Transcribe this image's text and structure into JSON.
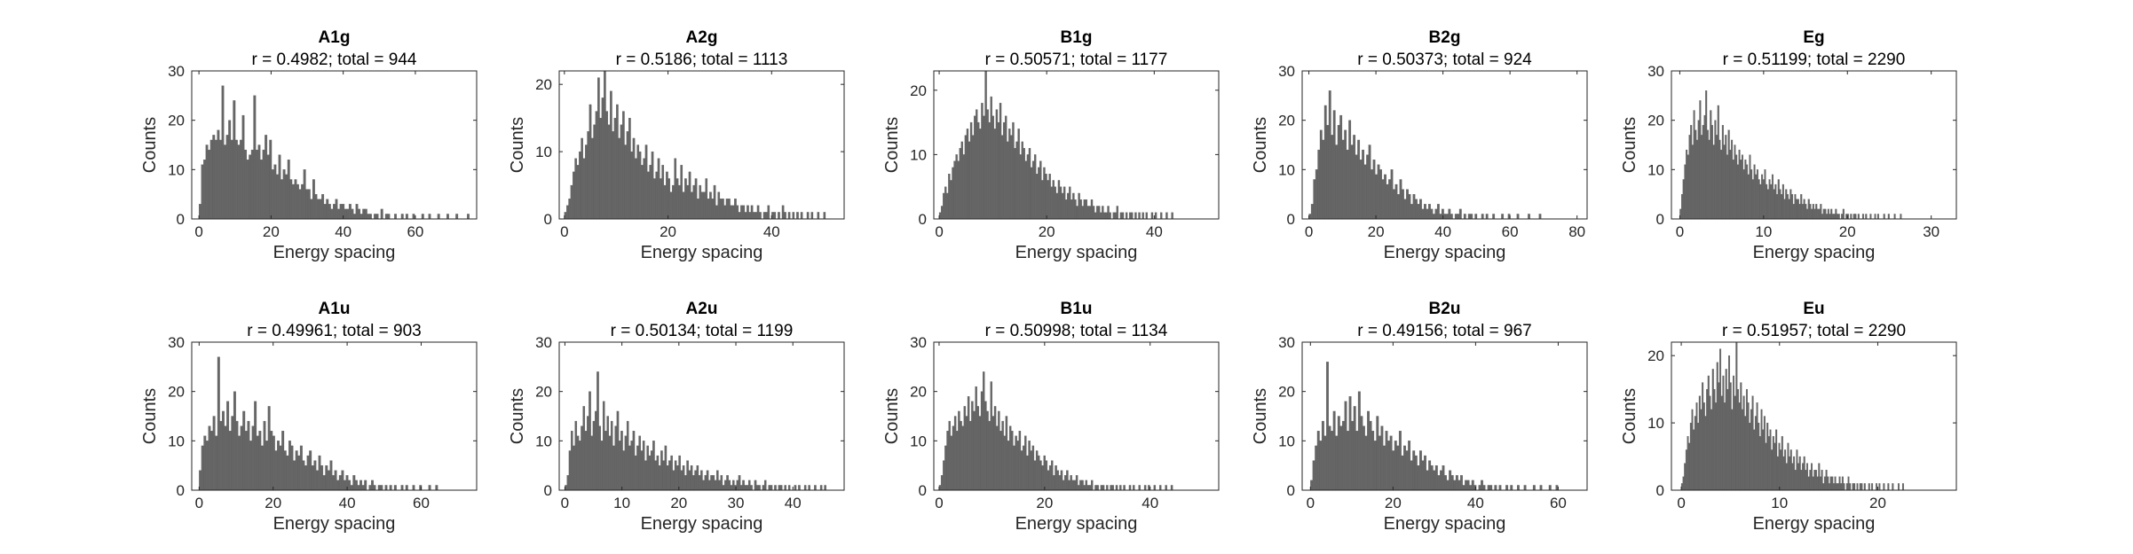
{
  "chart_data": [
    {
      "type": "bar",
      "title": "A1g",
      "subtitle": "r = 0.4982; total = 944",
      "xlabel": "Energy spacing",
      "ylabel": "Counts",
      "xlim": [
        -2,
        77
      ],
      "ylim": [
        0,
        30
      ],
      "xticks": [
        "0",
        "20",
        "40",
        "60"
      ],
      "yticks": [
        "0",
        "10",
        "20",
        "30"
      ],
      "bin_width": 0.63,
      "color": "#666666",
      "values": [
        3,
        11,
        12,
        15,
        14,
        16,
        17,
        16,
        18,
        16,
        27,
        15,
        17,
        20,
        16,
        24,
        16,
        15,
        16,
        21,
        14,
        12,
        13,
        14,
        25,
        14,
        15,
        12,
        14,
        17,
        13,
        16,
        10,
        11,
        9,
        13,
        8,
        10,
        9,
        12,
        8,
        7,
        8,
        7,
        6,
        7,
        10,
        6,
        6,
        4,
        8,
        5,
        4,
        4,
        5,
        3,
        4,
        3,
        2,
        3,
        4,
        2,
        3,
        3,
        2,
        2,
        3,
        2,
        1,
        3,
        2,
        1,
        2,
        2,
        1,
        1,
        0,
        1,
        1,
        0,
        2,
        0,
        1,
        1,
        0,
        0,
        1,
        0,
        0,
        1,
        0,
        1,
        0,
        0,
        1,
        0,
        0,
        0,
        1,
        0,
        0,
        1,
        0,
        0,
        0,
        1,
        0,
        0,
        0,
        1,
        0,
        0,
        0,
        1,
        0,
        0,
        0,
        0,
        1
      ]
    },
    {
      "type": "bar",
      "title": "A2g",
      "subtitle": "r = 0.5186; total = 1113",
      "xlabel": "Energy spacing",
      "ylabel": "Counts",
      "xlim": [
        -1,
        54
      ],
      "ylim": [
        0,
        22
      ],
      "xticks": [
        "0",
        "20",
        "40"
      ],
      "yticks": [
        "0",
        "10",
        "20"
      ],
      "bin_width": 0.4,
      "color": "#666666",
      "values": [
        1,
        2,
        3,
        5,
        7,
        9,
        8,
        10,
        12,
        9,
        11,
        13,
        17,
        12,
        14,
        16,
        21,
        15,
        18,
        22,
        16,
        14,
        19,
        13,
        15,
        17,
        12,
        14,
        16,
        11,
        13,
        15,
        10,
        12,
        9,
        11,
        10,
        8,
        9,
        11,
        7,
        8,
        10,
        6,
        7,
        9,
        6,
        8,
        5,
        7,
        6,
        4,
        5,
        9,
        6,
        5,
        8,
        4,
        6,
        5,
        7,
        4,
        5,
        6,
        3,
        5,
        4,
        4,
        6,
        3,
        4,
        3,
        5,
        2,
        4,
        3,
        3,
        2,
        3,
        3,
        2,
        2,
        3,
        2,
        1,
        2,
        2,
        1,
        2,
        1,
        2,
        1,
        1,
        2,
        1,
        0,
        1,
        1,
        2,
        0,
        1,
        1,
        0,
        1,
        0,
        2,
        1,
        0,
        1,
        0,
        1,
        0,
        1,
        0,
        1,
        0,
        0,
        1,
        0,
        1,
        0,
        0,
        1,
        0,
        0,
        1
      ]
    },
    {
      "type": "bar",
      "title": "B1g",
      "subtitle": "r = 0.50571; total = 1177",
      "xlabel": "Energy spacing",
      "ylabel": "Counts",
      "xlim": [
        -1,
        52
      ],
      "ylim": [
        0,
        23
      ],
      "xticks": [
        "0",
        "20",
        "40"
      ],
      "yticks": [
        "0",
        "10",
        "20"
      ],
      "bin_width": 0.34,
      "color": "#666666",
      "values": [
        1,
        2,
        4,
        5,
        4,
        7,
        6,
        8,
        9,
        10,
        9,
        11,
        12,
        10,
        13,
        14,
        12,
        15,
        13,
        16,
        17,
        15,
        14,
        18,
        16,
        23,
        17,
        15,
        19,
        16,
        14,
        17,
        15,
        18,
        13,
        15,
        16,
        12,
        14,
        13,
        15,
        11,
        12,
        14,
        10,
        12,
        11,
        9,
        10,
        11,
        8,
        9,
        10,
        7,
        8,
        9,
        6,
        8,
        7,
        6,
        7,
        5,
        6,
        5,
        4,
        6,
        5,
        4,
        5,
        3,
        4,
        5,
        3,
        4,
        3,
        2,
        4,
        3,
        2,
        3,
        3,
        2,
        2,
        3,
        2,
        1,
        2,
        2,
        1,
        2,
        1,
        1,
        2,
        1,
        0,
        1,
        1,
        2,
        0,
        1,
        1,
        0,
        1,
        0,
        1,
        1,
        0,
        1,
        0,
        1,
        0,
        1,
        0,
        1,
        0,
        0,
        1,
        0,
        1,
        0,
        0,
        1,
        0,
        0,
        1,
        0,
        0,
        1
      ]
    },
    {
      "type": "bar",
      "title": "B2g",
      "subtitle": "r = 0.50373; total = 924",
      "xlabel": "Energy spacing",
      "ylabel": "Counts",
      "xlim": [
        -2,
        83
      ],
      "ylim": [
        0,
        30
      ],
      "xticks": [
        "0",
        "20",
        "40",
        "60",
        "80"
      ],
      "yticks": [
        "0",
        "10",
        "20",
        "30"
      ],
      "bin_width": 0.66,
      "color": "#666666",
      "values": [
        1,
        3,
        8,
        10,
        14,
        18,
        16,
        23,
        19,
        26,
        17,
        22,
        15,
        19,
        21,
        16,
        18,
        14,
        20,
        15,
        17,
        13,
        16,
        12,
        14,
        11,
        13,
        15,
        10,
        12,
        9,
        11,
        10,
        8,
        9,
        7,
        8,
        10,
        6,
        7,
        5,
        8,
        6,
        4,
        6,
        5,
        3,
        5,
        4,
        3,
        4,
        2,
        3,
        2,
        3,
        2,
        1,
        2,
        3,
        1,
        2,
        1,
        1,
        2,
        1,
        0,
        1,
        1,
        2,
        0,
        1,
        0,
        1,
        1,
        0,
        1,
        0,
        0,
        1,
        0,
        1,
        0,
        0,
        1,
        0,
        0,
        0,
        1,
        0,
        0,
        1,
        0,
        0,
        0,
        1,
        0,
        0,
        0,
        0,
        1,
        0,
        0,
        0,
        0,
        1
      ]
    },
    {
      "type": "bar",
      "title": "Eg",
      "subtitle": "r = 0.51199; total = 2290",
      "xlabel": "Energy spacing",
      "ylabel": "Counts",
      "xlim": [
        -1,
        33
      ],
      "ylim": [
        0,
        30
      ],
      "xticks": [
        "0",
        "10",
        "20",
        "30"
      ],
      "yticks": [
        "0",
        "10",
        "20",
        "30"
      ],
      "bin_width": 0.18,
      "color": "#666666",
      "values": [
        2,
        5,
        8,
        11,
        14,
        13,
        17,
        19,
        15,
        22,
        18,
        16,
        20,
        24,
        17,
        19,
        21,
        26,
        18,
        16,
        22,
        19,
        15,
        20,
        17,
        23,
        16,
        14,
        19,
        15,
        17,
        13,
        18,
        14,
        16,
        12,
        15,
        13,
        11,
        14,
        12,
        13,
        10,
        12,
        11,
        9,
        13,
        10,
        8,
        11,
        9,
        10,
        8,
        7,
        9,
        8,
        10,
        7,
        6,
        8,
        7,
        9,
        6,
        7,
        5,
        8,
        6,
        5,
        7,
        4,
        6,
        5,
        4,
        6,
        5,
        3,
        5,
        4,
        4,
        3,
        5,
        3,
        4,
        3,
        2,
        4,
        3,
        2,
        3,
        2,
        3,
        2,
        2,
        3,
        1,
        2,
        2,
        1,
        2,
        1,
        2,
        1,
        1,
        2,
        1,
        1,
        0,
        1,
        2,
        0,
        1,
        1,
        0,
        1,
        0,
        1,
        1,
        0,
        1,
        0,
        0,
        1,
        0,
        1,
        0,
        0,
        1,
        0,
        0,
        1,
        0,
        1,
        0,
        0,
        0,
        1,
        0,
        0,
        1,
        0,
        0,
        0,
        1,
        0,
        0,
        0,
        1
      ]
    },
    {
      "type": "bar",
      "title": "A1u",
      "subtitle": "r = 0.49961; total = 903",
      "xlabel": "Energy spacing",
      "ylabel": "Counts",
      "xlim": [
        -2,
        75
      ],
      "ylim": [
        0,
        30
      ],
      "xticks": [
        "0",
        "20",
        "40",
        "60"
      ],
      "yticks": [
        "0",
        "10",
        "20",
        "30"
      ],
      "bin_width": 0.62,
      "color": "#666666",
      "values": [
        4,
        9,
        11,
        10,
        13,
        12,
        15,
        11,
        27,
        14,
        16,
        13,
        18,
        12,
        15,
        20,
        14,
        11,
        13,
        16,
        12,
        14,
        10,
        13,
        18,
        11,
        12,
        9,
        14,
        10,
        17,
        12,
        11,
        8,
        10,
        9,
        12,
        8,
        7,
        10,
        9,
        6,
        8,
        7,
        9,
        6,
        5,
        7,
        8,
        5,
        6,
        4,
        7,
        5,
        3,
        5,
        4,
        6,
        3,
        4,
        2,
        3,
        4,
        2,
        3,
        2,
        1,
        3,
        2,
        1,
        2,
        1,
        2,
        0,
        1,
        2,
        1,
        0,
        1,
        1,
        0,
        1,
        0,
        1,
        0,
        1,
        0,
        0,
        1,
        0,
        1,
        0,
        0,
        1,
        0,
        0,
        1,
        0,
        0,
        0,
        1,
        0,
        0,
        1
      ]
    },
    {
      "type": "bar",
      "title": "A2u",
      "subtitle": "r = 0.50134; total = 1199",
      "xlabel": "Energy spacing",
      "ylabel": "Counts",
      "xlim": [
        -1,
        49
      ],
      "ylim": [
        0,
        30
      ],
      "xticks": [
        "0",
        "10",
        "20",
        "30",
        "40"
      ],
      "yticks": [
        "0",
        "10",
        "20",
        "30"
      ],
      "bin_width": 0.35,
      "color": "#666666",
      "values": [
        1,
        3,
        8,
        12,
        9,
        14,
        11,
        10,
        13,
        17,
        12,
        15,
        20,
        11,
        14,
        16,
        24,
        13,
        10,
        18,
        12,
        15,
        11,
        14,
        9,
        13,
        16,
        10,
        12,
        8,
        11,
        14,
        9,
        10,
        12,
        7,
        9,
        11,
        8,
        10,
        6,
        9,
        7,
        8,
        10,
        6,
        7,
        5,
        8,
        6,
        9,
        5,
        6,
        7,
        4,
        6,
        5,
        7,
        4,
        5,
        3,
        6,
        4,
        5,
        3,
        4,
        5,
        3,
        4,
        2,
        3,
        4,
        2,
        3,
        3,
        2,
        4,
        2,
        3,
        1,
        2,
        3,
        2,
        1,
        2,
        1,
        2,
        3,
        1,
        2,
        1,
        1,
        2,
        1,
        0,
        2,
        1,
        1,
        0,
        1,
        2,
        0,
        1,
        1,
        0,
        1,
        0,
        1,
        1,
        0,
        1,
        0,
        1,
        0,
        0,
        1,
        0,
        1,
        0,
        0,
        1,
        0,
        1,
        0,
        0,
        1,
        0,
        0,
        1,
        0,
        1
      ]
    },
    {
      "type": "bar",
      "title": "B1u",
      "subtitle": "r = 0.50998; total = 1134",
      "xlabel": "Energy spacing",
      "ylabel": "Counts",
      "xlim": [
        -1,
        53
      ],
      "ylim": [
        0,
        30
      ],
      "xticks": [
        "0",
        "20",
        "40"
      ],
      "yticks": [
        "0",
        "10",
        "20",
        "30"
      ],
      "bin_width": 0.36,
      "color": "#666666",
      "values": [
        1,
        3,
        6,
        9,
        12,
        14,
        11,
        13,
        15,
        12,
        16,
        14,
        13,
        17,
        15,
        19,
        14,
        18,
        16,
        21,
        17,
        15,
        20,
        24,
        18,
        16,
        14,
        22,
        15,
        17,
        13,
        16,
        12,
        14,
        11,
        15,
        10,
        13,
        12,
        9,
        11,
        10,
        12,
        8,
        9,
        11,
        7,
        10,
        8,
        9,
        6,
        8,
        7,
        6,
        5,
        7,
        6,
        4,
        5,
        6,
        3,
        5,
        4,
        3,
        4,
        2,
        3,
        4,
        2,
        3,
        2,
        2,
        3,
        1,
        2,
        2,
        1,
        2,
        1,
        1,
        2,
        0,
        1,
        1,
        0,
        1,
        1,
        0,
        1,
        0,
        1,
        1,
        0,
        1,
        0,
        1,
        0,
        1,
        0,
        0,
        1,
        0,
        1,
        0,
        0,
        1,
        0,
        0,
        1,
        0,
        1,
        0,
        0,
        1,
        0,
        0,
        1,
        0,
        0,
        1,
        0,
        0,
        1
      ]
    },
    {
      "type": "bar",
      "title": "B2u",
      "subtitle": "r = 0.49156; total = 967",
      "xlabel": "Energy spacing",
      "ylabel": "Counts",
      "xlim": [
        -2,
        67
      ],
      "ylim": [
        0,
        30
      ],
      "xticks": [
        "0",
        "20",
        "40",
        "60"
      ],
      "yticks": [
        "0",
        "10",
        "20",
        "30"
      ],
      "bin_width": 0.55,
      "color": "#666666",
      "values": [
        2,
        6,
        9,
        12,
        10,
        14,
        11,
        26,
        13,
        12,
        16,
        11,
        15,
        13,
        14,
        18,
        12,
        19,
        14,
        17,
        12,
        20,
        15,
        13,
        11,
        16,
        14,
        12,
        10,
        15,
        11,
        13,
        9,
        12,
        10,
        11,
        8,
        10,
        9,
        12,
        7,
        9,
        8,
        10,
        6,
        8,
        7,
        5,
        8,
        6,
        7,
        4,
        6,
        5,
        4,
        5,
        3,
        4,
        5,
        3,
        2,
        4,
        3,
        2,
        3,
        2,
        3,
        1,
        2,
        2,
        1,
        2,
        1,
        0,
        1,
        2,
        1,
        0,
        1,
        1,
        0,
        1,
        0,
        1,
        0,
        0,
        1,
        0,
        1,
        0,
        0,
        1,
        0,
        0,
        1,
        0,
        0,
        0,
        1,
        0,
        0,
        1,
        0,
        0,
        0,
        1,
        0,
        0,
        1
      ]
    },
    {
      "type": "bar",
      "title": "Eu",
      "subtitle": "r = 0.51957; total = 2290",
      "xlabel": "Energy spacing",
      "ylabel": "Counts",
      "xlim": [
        -1,
        28
      ],
      "ylim": [
        0,
        22
      ],
      "xticks": [
        "0",
        "10",
        "20"
      ],
      "yticks": [
        "0",
        "10",
        "20"
      ],
      "bin_width": 0.15,
      "color": "#666666",
      "values": [
        1,
        2,
        4,
        6,
        8,
        7,
        10,
        12,
        9,
        11,
        13,
        10,
        14,
        12,
        16,
        13,
        11,
        15,
        17,
        14,
        12,
        18,
        15,
        13,
        19,
        16,
        21,
        14,
        17,
        13,
        18,
        15,
        20,
        16,
        12,
        17,
        14,
        22,
        15,
        13,
        16,
        12,
        14,
        11,
        15,
        13,
        10,
        12,
        14,
        9,
        11,
        13,
        10,
        8,
        12,
        9,
        11,
        7,
        10,
        8,
        9,
        6,
        8,
        7,
        9,
        5,
        7,
        6,
        8,
        5,
        6,
        4,
        7,
        5,
        6,
        4,
        5,
        3,
        6,
        4,
        5,
        3,
        4,
        5,
        3,
        4,
        2,
        3,
        4,
        2,
        3,
        3,
        2,
        4,
        2,
        3,
        1,
        2,
        3,
        2,
        1,
        2,
        2,
        1,
        2,
        1,
        1,
        2,
        1,
        2,
        1,
        0,
        1,
        2,
        1,
        0,
        1,
        1,
        0,
        1,
        0,
        1,
        1,
        0,
        1,
        0,
        0,
        1,
        0,
        1,
        0,
        0,
        1,
        0,
        1,
        0,
        0,
        1,
        0,
        0,
        1,
        0,
        0,
        1,
        0,
        0,
        0,
        1,
        0,
        0,
        1
      ]
    }
  ]
}
